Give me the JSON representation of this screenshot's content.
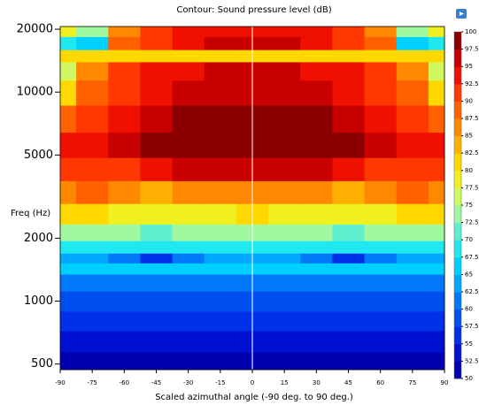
{
  "chart_data": {
    "type": "contour",
    "title": "Contour: Sound pressure level (dB)",
    "x_label": "Scaled azimuthal angle (-90 deg. to 90 deg.)",
    "y_label": "Freq (Hz)",
    "xlim": [
      -90,
      90
    ],
    "ylim": [
      470,
      20600
    ],
    "log_y": true,
    "xticks": [
      -90,
      -75,
      -60,
      -45,
      -30,
      -15,
      0,
      15,
      30,
      45,
      60,
      75,
      90
    ],
    "yticks": [
      500,
      1000,
      2000,
      5000,
      10000,
      20000
    ],
    "x": [
      -90,
      -75,
      -60,
      -45,
      -30,
      -15,
      0,
      15,
      30,
      45,
      60,
      75,
      90
    ],
    "y": [
      500,
      650,
      800,
      1000,
      1250,
      1450,
      1600,
      1800,
      2100,
      2600,
      3300,
      4300,
      5500,
      7500,
      10000,
      13000,
      15000,
      17000,
      20000
    ],
    "z": [
      [
        51,
        51,
        51,
        51,
        51,
        51,
        51,
        51,
        51,
        51,
        51,
        51,
        51
      ],
      [
        54,
        54,
        54,
        54,
        54,
        54,
        54,
        54,
        54,
        54,
        54,
        54,
        54
      ],
      [
        56,
        56,
        56,
        56,
        56,
        56,
        56,
        56,
        56,
        56,
        56,
        56,
        56
      ],
      [
        59,
        59,
        59,
        59,
        59,
        59,
        59,
        59,
        59,
        59,
        59,
        59,
        59
      ],
      [
        62,
        62,
        62,
        62,
        62,
        62,
        62,
        62,
        62,
        62,
        62,
        62,
        62
      ],
      [
        65,
        65,
        65,
        65,
        65,
        65,
        65,
        65,
        65,
        65,
        65,
        65,
        65
      ],
      [
        64,
        64,
        62,
        57,
        60,
        63,
        64,
        63,
        60,
        57,
        62,
        64,
        64
      ],
      [
        69,
        69,
        69,
        69,
        69,
        69,
        69,
        69,
        69,
        69,
        69,
        69,
        69
      ],
      [
        74,
        74,
        73,
        72,
        73,
        74,
        74,
        74,
        73,
        72,
        73,
        74,
        74
      ],
      [
        80,
        82,
        79,
        78,
        78,
        79,
        80,
        79,
        78,
        78,
        79,
        82,
        80
      ],
      [
        86,
        88,
        85,
        84,
        86,
        87,
        87,
        87,
        86,
        84,
        85,
        88,
        86
      ],
      [
        91,
        92,
        90,
        93,
        96,
        97,
        97,
        97,
        96,
        93,
        90,
        92,
        91
      ],
      [
        93,
        94,
        95,
        100,
        100,
        100,
        100,
        100,
        100,
        100,
        95,
        94,
        93
      ],
      [
        88,
        91,
        94,
        96,
        98,
        98,
        98,
        98,
        98,
        96,
        94,
        91,
        88
      ],
      [
        80,
        88,
        92,
        94,
        95,
        96,
        96,
        96,
        95,
        94,
        92,
        88,
        80
      ],
      [
        76,
        86,
        91,
        93,
        94,
        95,
        95,
        95,
        94,
        93,
        91,
        86,
        76
      ],
      [
        82,
        82,
        82,
        82,
        82,
        82,
        82,
        82,
        82,
        82,
        82,
        82,
        82
      ],
      [
        68,
        66,
        88,
        92,
        94,
        95,
        95,
        95,
        94,
        92,
        88,
        66,
        68
      ],
      [
        78,
        74,
        86,
        91,
        93,
        94,
        94,
        94,
        93,
        91,
        86,
        74,
        78
      ]
    ],
    "colorbar": {
      "ticks": [
        50,
        52.5,
        55,
        57.5,
        60,
        62.5,
        65,
        67.5,
        70,
        72.5,
        75,
        77.5,
        80,
        82.5,
        85,
        87.5,
        90,
        92.5,
        95,
        97.5,
        100
      ],
      "colors": [
        "#0000b0",
        "#0010d0",
        "#0030e8",
        "#0050f0",
        "#0078f8",
        "#00a8ff",
        "#00d0ff",
        "#20e8f0",
        "#60f0d0",
        "#a0f8a0",
        "#d0f860",
        "#f0f020",
        "#ffd800",
        "#ffb000",
        "#ff8800",
        "#ff6000",
        "#ff3800",
        "#f01000",
        "#c80000",
        "#8a0000"
      ]
    }
  }
}
